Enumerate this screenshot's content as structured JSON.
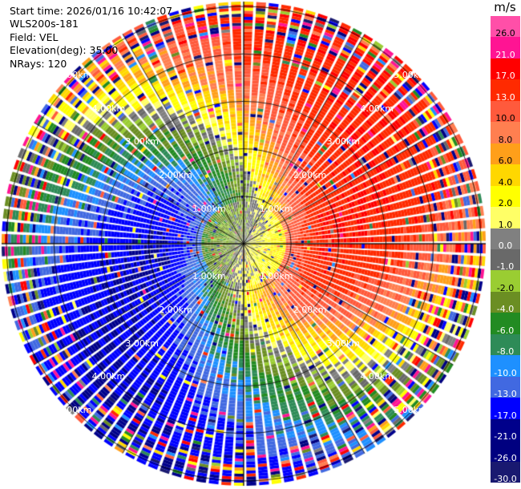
{
  "header": {
    "start_time": "Start time: 2026/01/16 10:42:07",
    "instrument": "WLS200s-181",
    "field": "Field: VEL",
    "elevation": "Elevation(deg): 35.00",
    "nrays": "NRays: 120"
  },
  "colorbar": {
    "unit": "m/s",
    "bins": [
      {
        "label": "26.0",
        "color": "#ff4fa8"
      },
      {
        "label": "21.0",
        "color": "#ff1493"
      },
      {
        "label": "17.0",
        "color": "#ff0000"
      },
      {
        "label": "13.0",
        "color": "#ff2a00"
      },
      {
        "label": "10.0",
        "color": "#ff5a3c"
      },
      {
        "label": "8.0",
        "color": "#ff7f50"
      },
      {
        "label": "6.0",
        "color": "#ff9f1a"
      },
      {
        "label": "4.0",
        "color": "#ffd700"
      },
      {
        "label": "2.0",
        "color": "#ffff00"
      },
      {
        "label": "1.0",
        "color": "#ffff66"
      },
      {
        "label": "0.0",
        "color": "#808080"
      },
      {
        "label": "-1.0",
        "color": "#696969"
      },
      {
        "label": "-2.0",
        "color": "#9acd32"
      },
      {
        "label": "-4.0",
        "color": "#6b8e23"
      },
      {
        "label": "-6.0",
        "color": "#228b22"
      },
      {
        "label": "-8.0",
        "color": "#2e8b57"
      },
      {
        "label": "-10.0",
        "color": "#1e90ff"
      },
      {
        "label": "-13.0",
        "color": "#4169e1"
      },
      {
        "label": "-17.0",
        "color": "#0000ff"
      },
      {
        "label": "-21.0",
        "color": "#00008b"
      },
      {
        "label": "-26.0",
        "color": "#000080"
      },
      {
        "label": "-30.0",
        "color": "#191970"
      }
    ]
  },
  "chart_data": {
    "type": "heatmap",
    "projection": "polar (PPI)",
    "field": "VEL",
    "units": "m/s",
    "n_rays": 120,
    "elevation_deg": 35.0,
    "range_rings_km": [
      1,
      2,
      3,
      4,
      5
    ],
    "ring_labels": [
      "1.00km",
      "2.00km",
      "3.00km",
      "4.00km",
      "5.00km"
    ],
    "max_range_km": 5.0,
    "radial_spokes_deg": [
      0,
      30,
      60,
      90,
      120,
      150,
      180,
      210,
      240,
      270,
      300,
      330
    ],
    "velocity_pattern": {
      "description": "large-scale flow: negative (toward) velocities to NW, positive (away) to SE, near-zero in center and along NE/SW crossover",
      "max_positive_azimuth_deg": 120,
      "max_negative_azimuth_deg": 300,
      "peak_speed_ms": 17.0
    },
    "colorbar_range": [
      -30.0,
      26.0
    ]
  }
}
